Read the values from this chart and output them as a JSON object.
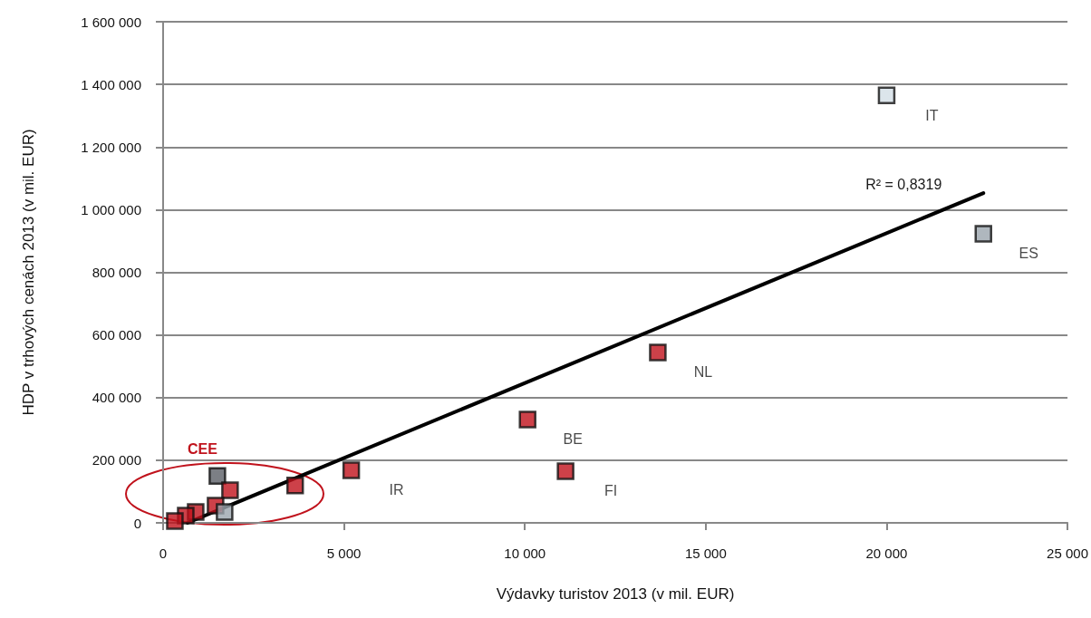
{
  "chart_data": {
    "type": "scatter",
    "xlabel": "Výdavky turistov 2013 (v mil. EUR)",
    "ylabel": "HDP v trhových cenách 2013 (v mil. EUR)",
    "xlim": [
      0,
      25000
    ],
    "xticks": [
      0,
      {
        "value": 5000,
        "label": "5 000"
      },
      {
        "value": 10000,
        "label": "10 000"
      },
      {
        "value": 15000,
        "label": "15 000"
      },
      {
        "value": 20000,
        "label": "20 000"
      },
      {
        "value": 25000,
        "label": "25 000"
      }
    ],
    "ylim": [
      0,
      1600000
    ],
    "yticks": [
      0,
      {
        "value": 200000,
        "label": "200 000"
      },
      {
        "value": 400000,
        "label": "400 000"
      },
      {
        "value": 600000,
        "label": "600 000"
      },
      {
        "value": 800000,
        "label": "800 000"
      },
      {
        "value": 1000000,
        "label": "1 000 000"
      },
      {
        "value": 1200000,
        "label": "1 200 000"
      },
      {
        "value": 1400000,
        "label": "1 400 000"
      },
      {
        "value": 1600000,
        "label": "1 600 000"
      }
    ],
    "grid": "y",
    "series": [
      {
        "marker": "square",
        "x": [
          20000,
          22675,
          13675,
          10075,
          11125,
          5200,
          3650,
          1500,
          1850,
          1450,
          1700,
          900,
          625,
          325
        ],
        "values": [
          1365000,
          923000,
          544000,
          330000,
          165000,
          168000,
          119000,
          150000,
          104000,
          55000,
          35000,
          35000,
          23000,
          6000
        ],
        "colors": [
          "#d3dee6",
          "#9ba5ae",
          "#c0121c",
          "#c0121c",
          "#c0121c",
          "#c0121c",
          "#c0121c",
          "#5b5f66",
          "#c0121c",
          "#c0121c",
          "#9ba5ae",
          "#c0121c",
          "#c0121c",
          "#c0121c"
        ]
      },
      {
        "type": "line",
        "x": [
          675,
          22675
        ],
        "values": [
          0,
          1053000
        ],
        "color": "#000000"
      }
    ],
    "annotations": [
      {
        "text": "IT",
        "x": 20000,
        "y": 1365000
      },
      {
        "text": "ES",
        "x": 22675,
        "y": 923000
      },
      {
        "text": "NL",
        "x": 13675,
        "y": 544000
      },
      {
        "text": "BE",
        "x": 10075,
        "y": 330000
      },
      {
        "text": "FI",
        "x": 11125,
        "y": 165000
      },
      {
        "text": "IR",
        "x": 5200,
        "y": 168000
      },
      "CEE",
      "R² = 0,8319"
    ]
  }
}
